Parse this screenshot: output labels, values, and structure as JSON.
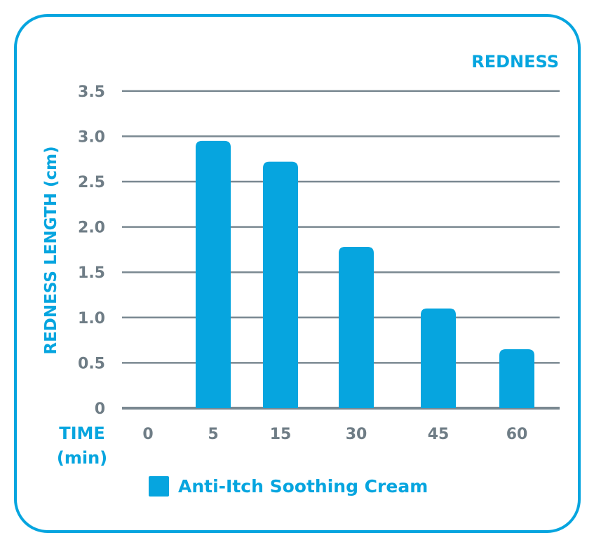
{
  "chart_data": {
    "type": "bar",
    "title": "REDNESS",
    "xlabel": "TIME (min)",
    "xlabel_lines": [
      "TIME",
      "(min)"
    ],
    "ylabel": "REDNESS LENGTH (cm)",
    "categories": [
      "0",
      "5",
      "15",
      "30",
      "45",
      "60"
    ],
    "series": [
      {
        "name": "Anti-Itch Soothing Cream",
        "values": [
          0,
          2.95,
          2.72,
          1.78,
          1.1,
          0.65
        ],
        "color": "#06a5df"
      }
    ],
    "yticks": [
      "0",
      "0.5",
      "1.0",
      "1.5",
      "2.0",
      "2.5",
      "3.0",
      "3.5"
    ],
    "ylim": [
      0,
      3.5
    ],
    "grid": true,
    "legend_position": "bottom",
    "colors": {
      "accent": "#06a5df",
      "grid": "#7a8891",
      "tick_text": "#6f7d86"
    }
  }
}
